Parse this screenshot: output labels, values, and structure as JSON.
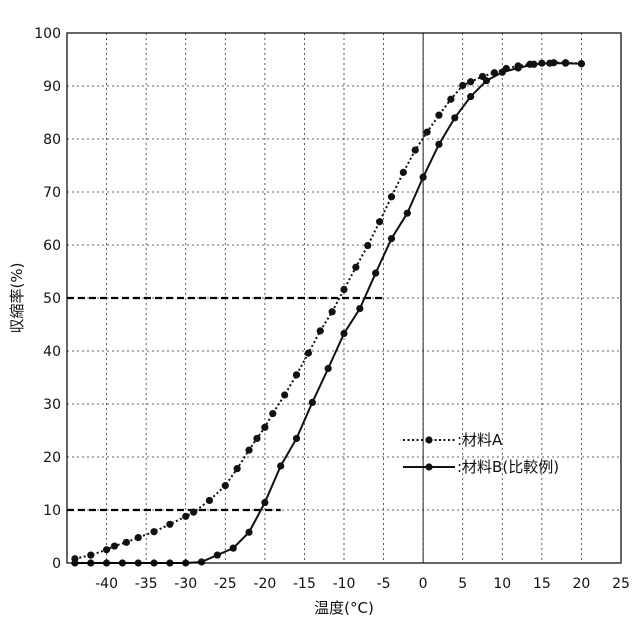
{
  "chart_data": {
    "type": "line",
    "xlabel": "温度(°C)",
    "ylabel": "収縮率(%)",
    "xlim": [
      -45,
      25
    ],
    "ylim": [
      0,
      100
    ],
    "x_ticks": [
      -40,
      -35,
      -30,
      -25,
      -20,
      -15,
      -10,
      -5,
      0,
      5,
      10,
      15,
      20,
      25
    ],
    "y_ticks": [
      0,
      10,
      20,
      30,
      40,
      50,
      60,
      70,
      80,
      90,
      100
    ],
    "x_tick_labels": [
      "-40",
      "-35",
      "-30",
      "-25",
      "-20",
      "-15",
      "-10",
      "-5",
      "0",
      "5",
      "10",
      "15",
      "20",
      "25"
    ],
    "y_tick_labels": [
      "0",
      "10",
      "20",
      "30",
      "40",
      "50",
      "60",
      "70",
      "80",
      "90",
      "100"
    ],
    "grid": true,
    "legend_position": "lower-right",
    "series": [
      {
        "name": ":材料A",
        "style": "dotted",
        "marker": "circle",
        "color": "#111111",
        "x": [
          -44,
          -42,
          -40,
          -39,
          -37.5,
          -36,
          -34,
          -32,
          -30,
          -29,
          -27,
          -25,
          -23.5,
          -22,
          -21,
          -20,
          -19,
          -17.5,
          -16,
          -14.5,
          -13,
          -11.5,
          -10,
          -8.5,
          -7,
          -5.5,
          -4,
          -2.5,
          -1,
          0.5,
          2,
          3.5,
          5,
          6,
          7.5,
          9,
          10.5,
          12,
          13.5,
          15,
          16.5,
          18,
          20
        ],
        "y": [
          0.8,
          1.5,
          2.5,
          3.2,
          3.9,
          4.8,
          5.9,
          7.3,
          8.8,
          9.6,
          11.8,
          14.6,
          17.8,
          21.3,
          23.5,
          25.6,
          28.2,
          31.7,
          35.5,
          39.6,
          43.8,
          47.4,
          51.6,
          55.8,
          59.9,
          64.4,
          69.1,
          73.7,
          77.9,
          81.3,
          84.5,
          87.5,
          90.1,
          90.8,
          91.8,
          92.5,
          93.3,
          93.8,
          94.1,
          94.3,
          94.4,
          94.4,
          94.2
        ]
      },
      {
        "name": ":材料B(比較例)",
        "style": "solid",
        "marker": "circle",
        "color": "#111111",
        "x": [
          -44,
          -42,
          -40,
          -38,
          -36,
          -34,
          -32,
          -30,
          -28,
          -26,
          -24,
          -22,
          -20,
          -18,
          -16,
          -14,
          -12,
          -10,
          -8,
          -6,
          -4,
          -2,
          0,
          2,
          4,
          6,
          8,
          10,
          12,
          14,
          16,
          18,
          20
        ],
        "y": [
          0,
          0,
          0,
          0,
          0,
          0,
          0,
          0,
          0.2,
          1.5,
          2.8,
          5.8,
          11.4,
          18.3,
          23.5,
          30.3,
          36.7,
          43.3,
          48.0,
          54.7,
          61.2,
          66.0,
          72.8,
          79.0,
          84.0,
          88.0,
          91.0,
          92.6,
          93.4,
          94.1,
          94.3,
          94.3,
          94.2
        ]
      }
    ],
    "reference_lines": [
      {
        "y": 50,
        "x_start": -45,
        "x_end": -5,
        "style": "dashed"
      },
      {
        "y": 10,
        "x_start": -45,
        "x_end": -18,
        "style": "dashed"
      }
    ],
    "vertical_reference": {
      "x": 0,
      "style": "solid-thin"
    }
  }
}
